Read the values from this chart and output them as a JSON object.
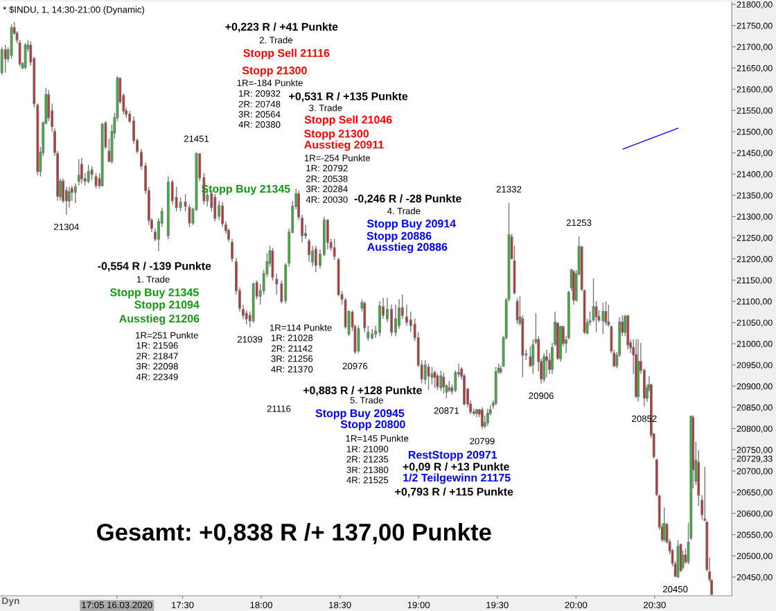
{
  "chart_data": {
    "type": "candlestick",
    "title": "* $INDU, 1, 14:30-21:00 (Dynamic)",
    "x": [
      16.352,
      16.374,
      16.391,
      16.413,
      16.431,
      16.448,
      16.466,
      16.483,
      16.501,
      16.518,
      16.535,
      16.557,
      16.579,
      16.597,
      16.614,
      16.632,
      16.649,
      16.671,
      16.688,
      16.706,
      16.723,
      16.741,
      16.762,
      16.78,
      16.797,
      16.819,
      16.841,
      16.859,
      16.88,
      16.902,
      16.924,
      16.95,
      16.972,
      16.99,
      17.011,
      17.033,
      17.051,
      17.068,
      17.086,
      17.103,
      17.125,
      17.142,
      17.164,
      17.19,
      17.212,
      17.238,
      17.265,
      17.286,
      17.304,
      17.326,
      17.348,
      17.369,
      17.409,
      17.435,
      17.461,
      17.487,
      17.518,
      17.544,
      17.566,
      17.588,
      17.609,
      17.636,
      17.658,
      17.684,
      17.706,
      17.732,
      17.754,
      17.775,
      17.793,
      17.815,
      17.841,
      17.863,
      17.885,
      17.906,
      17.928,
      17.95,
      17.972,
      17.994,
      18.016,
      18.037,
      18.055,
      18.072,
      18.098,
      18.129,
      18.155,
      18.177,
      18.199,
      18.221,
      18.238,
      18.26,
      18.282,
      18.304,
      18.326,
      18.347,
      18.374,
      18.4,
      18.422,
      18.443,
      18.465,
      18.491,
      18.513,
      18.535,
      18.557,
      18.579,
      18.596,
      18.618,
      18.64,
      18.657,
      18.679,
      18.705,
      18.727,
      18.753,
      18.775,
      18.801,
      18.828,
      18.854,
      18.876,
      18.897,
      18.924,
      18.95,
      18.976,
      18.998,
      19.02,
      19.042,
      19.063,
      19.085,
      19.103,
      19.12,
      19.142,
      19.159,
      19.177,
      19.194,
      19.212,
      19.234,
      19.255,
      19.273,
      19.29,
      19.312,
      19.33,
      19.351,
      19.369,
      19.386,
      19.404,
      19.421,
      19.439,
      19.456,
      19.474,
      19.491,
      19.509,
      19.522,
      19.539,
      19.557,
      19.574,
      19.592,
      19.609,
      19.627,
      19.644,
      19.661,
      19.683,
      19.71,
      19.727,
      19.745,
      19.762,
      19.779,
      19.797,
      19.814,
      19.832,
      19.849,
      19.867,
      19.884,
      19.902,
      19.919,
      19.937,
      19.954,
      19.971,
      19.985,
      20.002,
      20.019,
      20.037,
      20.054,
      20.072,
      20.089,
      20.111,
      20.129,
      20.146,
      20.172,
      20.19,
      20.207,
      20.225,
      20.242,
      20.26,
      20.277,
      20.295,
      20.312,
      20.33,
      20.347,
      20.365,
      20.382,
      20.395,
      20.412,
      20.434,
      20.452,
      20.465,
      20.478,
      20.495,
      20.513,
      20.53,
      20.548,
      20.561,
      20.578,
      20.596,
      20.613,
      20.631,
      20.648,
      20.666,
      20.679,
      20.696,
      20.714,
      20.731,
      20.744,
      20.762,
      20.779,
      20.801,
      20.819,
      20.832,
      20.849,
      20.862
    ],
    "ohlc": [
      [
        21639,
        21699,
        21634,
        21693
      ],
      [
        21693,
        21704,
        21639,
        21672
      ],
      [
        21672,
        21699,
        21664,
        21693
      ],
      [
        21680,
        21753,
        21672,
        21745
      ],
      [
        21745,
        21758,
        21729,
        21732
      ],
      [
        21732,
        21737,
        21709,
        21716
      ],
      [
        21709,
        21716,
        21654,
        21660
      ],
      [
        21650,
        21664,
        21647,
        21660
      ],
      [
        21652,
        21709,
        21647,
        21704
      ],
      [
        21696,
        21716,
        21688,
        21704
      ],
      [
        21704,
        21713,
        21655,
        21664
      ],
      [
        21672,
        21677,
        21557,
        21566
      ],
      [
        21562,
        21566,
        21397,
        21406
      ],
      [
        21406,
        21464,
        21394,
        21451
      ],
      [
        21451,
        21525,
        21443,
        21520
      ],
      [
        21520,
        21603,
        21517,
        21587
      ],
      [
        21587,
        21598,
        21525,
        21533
      ],
      [
        21549,
        21566,
        21500,
        21512
      ],
      [
        21500,
        21508,
        21443,
        21451
      ],
      [
        21448,
        21454,
        21337,
        21348
      ],
      [
        21347,
        21389,
        21337,
        21383
      ],
      [
        21383,
        21389,
        21332,
        21337
      ],
      [
        21361,
        21370,
        21304,
        21337
      ],
      [
        21337,
        21370,
        21321,
        21358
      ],
      [
        21366,
        21373,
        21337,
        21357
      ],
      [
        21357,
        21378,
        21332,
        21370
      ],
      [
        21383,
        21435,
        21373,
        21397
      ],
      [
        21423,
        21438,
        21378,
        21389
      ],
      [
        21389,
        21402,
        21373,
        21383
      ],
      [
        21383,
        21422,
        21378,
        21406
      ],
      [
        21410,
        21419,
        21386,
        21399
      ],
      [
        21394,
        21402,
        21366,
        21373
      ],
      [
        21389,
        21402,
        21366,
        21373
      ],
      [
        21373,
        21521,
        21370,
        21517
      ],
      [
        21520,
        21525,
        21459,
        21464
      ],
      [
        21454,
        21484,
        21427,
        21430
      ],
      [
        21430,
        21517,
        21425,
        21500
      ],
      [
        21497,
        21544,
        21484,
        21533
      ],
      [
        21533,
        21631,
        21525,
        21626
      ],
      [
        21626,
        21628,
        21566,
        21570
      ],
      [
        21585,
        21590,
        21541,
        21549
      ],
      [
        21549,
        21557,
        21533,
        21541
      ],
      [
        21541,
        21549,
        21520,
        21525
      ],
      [
        21525,
        21536,
        21471,
        21479
      ],
      [
        21479,
        21484,
        21448,
        21454
      ],
      [
        21451,
        21459,
        21410,
        21419
      ],
      [
        21419,
        21427,
        21353,
        21361
      ],
      [
        21361,
        21370,
        21280,
        21291
      ],
      [
        21291,
        21296,
        21263,
        21272
      ],
      [
        21263,
        21272,
        21242,
        21247
      ],
      [
        21247,
        21296,
        21218,
        21288
      ],
      [
        21285,
        21321,
        21275,
        21312
      ],
      [
        21255,
        21394,
        21247,
        21381
      ],
      [
        21381,
        21386,
        21329,
        21337
      ],
      [
        21345,
        21370,
        21312,
        21321
      ],
      [
        21321,
        21345,
        21312,
        21334
      ],
      [
        21334,
        21353,
        21312,
        21324
      ],
      [
        21321,
        21329,
        21275,
        21285
      ],
      [
        21285,
        21321,
        21280,
        21317
      ],
      [
        21317,
        21451,
        21312,
        21448
      ],
      [
        21448,
        21448,
        21383,
        21391
      ],
      [
        21391,
        21402,
        21329,
        21337
      ],
      [
        21337,
        21357,
        21324,
        21350
      ],
      [
        21353,
        21361,
        21312,
        21321
      ],
      [
        21345,
        21353,
        21288,
        21296
      ],
      [
        21301,
        21337,
        21291,
        21325
      ],
      [
        21325,
        21334,
        21275,
        21283
      ],
      [
        21280,
        21288,
        21259,
        21267
      ],
      [
        21267,
        21272,
        21239,
        21247
      ],
      [
        21239,
        21247,
        21193,
        21201
      ],
      [
        21193,
        21203,
        21116,
        21125
      ],
      [
        21125,
        21133,
        21076,
        21084
      ],
      [
        21081,
        21092,
        21059,
        21067
      ],
      [
        21072,
        21079,
        21046,
        21059
      ],
      [
        21067,
        21076,
        21039,
        21054
      ],
      [
        21054,
        21144,
        21049,
        21141
      ],
      [
        21144,
        21149,
        21105,
        21112
      ],
      [
        21112,
        21141,
        21092,
        21125
      ],
      [
        21125,
        21174,
        21116,
        21165
      ],
      [
        21165,
        21214,
        21157,
        21193
      ],
      [
        21190,
        21231,
        21182,
        21219
      ],
      [
        21219,
        21226,
        21149,
        21157
      ],
      [
        21152,
        21165,
        21116,
        21141
      ],
      [
        21141,
        21149,
        21095,
        21100
      ],
      [
        21102,
        21190,
        21095,
        21185
      ],
      [
        21190,
        21272,
        21182,
        21263
      ],
      [
        21263,
        21337,
        21259,
        21324
      ],
      [
        21324,
        21365,
        21317,
        21353
      ],
      [
        21353,
        21361,
        21291,
        21299
      ],
      [
        21296,
        21304,
        21239,
        21255
      ],
      [
        21260,
        21280,
        21247,
        21255
      ],
      [
        21242,
        21247,
        21193,
        21210
      ],
      [
        21193,
        21231,
        21182,
        21219
      ],
      [
        21223,
        21231,
        21169,
        21185
      ],
      [
        21185,
        21223,
        21177,
        21211
      ],
      [
        21211,
        21299,
        21206,
        21291
      ],
      [
        21291,
        21294,
        21223,
        21239
      ],
      [
        21239,
        21247,
        21219,
        21226
      ],
      [
        21226,
        21247,
        21198,
        21206
      ],
      [
        21198,
        21203,
        21112,
        21116
      ],
      [
        21116,
        21125,
        21092,
        21105
      ],
      [
        21103,
        21108,
        21035,
        21040
      ],
      [
        21023,
        21079,
        21018,
        21076
      ],
      [
        21074,
        21079,
        21030,
        21040
      ],
      [
        21040,
        21046,
        20976,
        20981
      ],
      [
        20983,
        21043,
        20978,
        21035
      ],
      [
        21084,
        21105,
        21076,
        21097
      ],
      [
        21095,
        21100,
        21027,
        21038
      ],
      [
        21014,
        21043,
        21007,
        21027
      ],
      [
        21014,
        21035,
        21010,
        21023
      ],
      [
        21023,
        21043,
        21014,
        21030
      ],
      [
        21027,
        21100,
        21018,
        21089
      ],
      [
        21087,
        21108,
        21059,
        21067
      ],
      [
        21059,
        21108,
        21051,
        21081
      ],
      [
        21081,
        21092,
        21018,
        21027
      ],
      [
        21027,
        21092,
        21018,
        21059
      ],
      [
        21043,
        21105,
        21035,
        21084
      ],
      [
        21085,
        21116,
        21059,
        21067
      ],
      [
        21063,
        21092,
        21043,
        21051
      ],
      [
        21056,
        21076,
        21027,
        21043
      ],
      [
        21046,
        21059,
        21007,
        21014
      ],
      [
        21014,
        21027,
        20945,
        20950
      ],
      [
        20950,
        20961,
        20907,
        20917
      ],
      [
        20916,
        20961,
        20904,
        20950
      ],
      [
        20945,
        20953,
        20891,
        20924
      ],
      [
        20921,
        20945,
        20904,
        20929
      ],
      [
        20932,
        20937,
        20896,
        20921
      ],
      [
        20924,
        20929,
        20891,
        20899
      ],
      [
        20896,
        20937,
        20888,
        20924
      ],
      [
        20921,
        20932,
        20883,
        20899
      ],
      [
        20886,
        20904,
        20871,
        20901
      ],
      [
        20891,
        20912,
        20886,
        20896
      ],
      [
        20896,
        20904,
        20880,
        20888
      ],
      [
        20891,
        20937,
        20886,
        20932
      ],
      [
        20932,
        20953,
        20921,
        20929
      ],
      [
        20940,
        20945,
        20916,
        20924
      ],
      [
        20924,
        20929,
        20854,
        20858
      ],
      [
        20893,
        20896,
        20850,
        20858
      ],
      [
        20858,
        20867,
        20834,
        20839
      ],
      [
        20839,
        20847,
        20831,
        20836
      ],
      [
        20836,
        20847,
        20827,
        20844
      ],
      [
        20844,
        20847,
        20827,
        20834
      ],
      [
        20844,
        20850,
        20799,
        20806
      ],
      [
        20806,
        20831,
        20801,
        20814
      ],
      [
        20814,
        20847,
        20806,
        20836
      ],
      [
        20836,
        20855,
        20831,
        20844
      ],
      [
        20855,
        20867,
        20847,
        20860
      ],
      [
        20860,
        20945,
        20855,
        20934
      ],
      [
        20934,
        20953,
        20929,
        20942
      ],
      [
        20940,
        20948,
        20929,
        20934
      ],
      [
        20948,
        21018,
        20945,
        21014
      ],
      [
        21015,
        21108,
        21010,
        21103
      ],
      [
        21105,
        21332,
        21100,
        21257
      ],
      [
        21252,
        21259,
        21198,
        21201
      ],
      [
        21195,
        21231,
        21116,
        21120
      ],
      [
        21100,
        21108,
        21046,
        21056
      ],
      [
        21049,
        21112,
        21043,
        21063
      ],
      [
        21059,
        21067,
        20921,
        20973
      ],
      [
        20976,
        20986,
        20961,
        20974
      ],
      [
        20969,
        20994,
        20945,
        20948
      ],
      [
        20950,
        21010,
        20929,
        20997
      ],
      [
        21004,
        21072,
        20999,
        21010
      ],
      [
        21010,
        21018,
        20935,
        20958
      ],
      [
        20958,
        20965,
        20906,
        20917
      ],
      [
        20917,
        20978,
        20909,
        20969
      ],
      [
        20969,
        20986,
        20921,
        20961
      ],
      [
        20961,
        20978,
        20929,
        20940
      ],
      [
        20940,
        21002,
        20929,
        20991
      ],
      [
        20999,
        21076,
        20994,
        21051
      ],
      [
        21048,
        21051,
        20961,
        20966
      ],
      [
        20965,
        21043,
        20958,
        21040
      ],
      [
        21040,
        21043,
        20994,
        21001
      ],
      [
        21001,
        21018,
        20978,
        21009
      ],
      [
        21015,
        21125,
        21010,
        21121
      ],
      [
        21133,
        21177,
        21125,
        21174
      ],
      [
        21170,
        21174,
        21092,
        21103
      ],
      [
        21103,
        21174,
        21099,
        21165
      ],
      [
        21165,
        21253,
        21161,
        21229
      ],
      [
        21228,
        21231,
        21125,
        21128
      ],
      [
        21125,
        21128,
        21023,
        21027
      ],
      [
        21025,
        21059,
        21022,
        21049
      ],
      [
        21051,
        21076,
        21043,
        21054
      ],
      [
        21056,
        21154,
        21051,
        21087
      ],
      [
        21087,
        21100,
        21027,
        21064
      ],
      [
        21064,
        21079,
        21051,
        21056
      ],
      [
        21054,
        21097,
        21023,
        21076
      ],
      [
        21076,
        21100,
        21043,
        21051
      ],
      [
        21051,
        21092,
        21040,
        21045
      ],
      [
        21040,
        21043,
        20978,
        20983
      ],
      [
        20978,
        20986,
        20945,
        20948
      ],
      [
        20948,
        20981,
        20942,
        20973
      ],
      [
        20974,
        21063,
        20969,
        21051
      ],
      [
        21051,
        21067,
        21018,
        21027
      ],
      [
        21027,
        21069,
        21018,
        21064
      ],
      [
        21066,
        21067,
        20986,
        20997
      ],
      [
        21002,
        21010,
        20978,
        20991
      ],
      [
        20991,
        21010,
        20929,
        20974
      ],
      [
        20974,
        21010,
        20872,
        20876
      ],
      [
        20876,
        21010,
        20863,
        20958
      ],
      [
        20958,
        21002,
        20929,
        20937
      ],
      [
        20937,
        20942,
        20852,
        20872
      ],
      [
        20872,
        20904,
        20863,
        20896
      ],
      [
        20896,
        20924,
        20888,
        20903
      ],
      [
        20903,
        20906,
        20778,
        20785
      ],
      [
        20787,
        20790,
        20729,
        20734
      ],
      [
        20726,
        20729,
        20641,
        20645
      ],
      [
        20641,
        20645,
        20561,
        20568
      ],
      [
        20568,
        20576,
        20533,
        20538
      ],
      [
        20538,
        20614,
        20533,
        20576
      ],
      [
        20574,
        20578,
        20529,
        20533
      ],
      [
        20533,
        20540,
        20504,
        20512
      ],
      [
        20512,
        20517,
        20475,
        20483
      ],
      [
        20481,
        20488,
        20450,
        20452
      ],
      [
        20450,
        20537,
        20450,
        20522
      ],
      [
        20527,
        20529,
        20462,
        20465
      ],
      [
        20473,
        20512,
        20468,
        20501
      ],
      [
        20502,
        20517,
        20481,
        20486
      ],
      [
        20486,
        20578,
        20480,
        20532
      ],
      [
        20542,
        20831,
        20537,
        20829
      ],
      [
        20826,
        20831,
        20659,
        20703
      ],
      [
        20676,
        20769,
        20667,
        20725
      ],
      [
        20720,
        20749,
        20618,
        20643
      ],
      [
        20631,
        20643,
        20586,
        20597
      ],
      [
        20587,
        20710,
        20582,
        20584
      ],
      [
        20579,
        20582,
        20463,
        20468
      ],
      [
        20462,
        20496,
        20439,
        20445
      ],
      [
        20442,
        20445,
        20408,
        20409
      ]
    ],
    "series": [
      {
        "type": "line",
        "x": [
          20.299,
          20.648
        ],
        "values": [
          21459,
          21508
        ],
        "color": "#0000ff"
      }
    ],
    "xlim": [
      16.34,
      20.99
    ],
    "ylim": [
      20406,
      21806
    ],
    "xticks": [
      {
        "value": 17.083,
        "label": "17:05 16.03.2020"
      },
      {
        "value": 17.5,
        "label": "17:30"
      },
      {
        "value": 18,
        "label": "18:00"
      },
      {
        "value": 18.5,
        "label": "18:30"
      },
      {
        "value": 19,
        "label": "19:00"
      },
      {
        "value": 19.5,
        "label": "19:30"
      },
      {
        "value": 20,
        "label": "20:00"
      },
      {
        "value": 20.5,
        "label": "20:30"
      }
    ],
    "yticks": [
      {
        "value": 20450,
        "label": "20450,00"
      },
      {
        "value": 20500,
        "label": "20500,00"
      },
      {
        "value": 20550,
        "label": "20550,00"
      },
      {
        "value": 20600,
        "label": "20600,00"
      },
      {
        "value": 20650,
        "label": "20650,00"
      },
      {
        "value": 20700,
        "label": "20700,00"
      },
      {
        "value": 20729.33,
        "label": "20729,33"
      },
      {
        "value": 20750,
        "label": "20750,00"
      },
      {
        "value": 20800,
        "label": "20800,00"
      },
      {
        "value": 20850,
        "label": "20850,00"
      },
      {
        "value": 20900,
        "label": "20900,00"
      },
      {
        "value": 20950,
        "label": "20950,00"
      },
      {
        "value": 21000,
        "label": "21000,00"
      },
      {
        "value": 21050,
        "label": "21050,00"
      },
      {
        "value": 21100,
        "label": "21100,00"
      },
      {
        "value": 21150,
        "label": "21150,00"
      },
      {
        "value": 21200,
        "label": "21200,00"
      },
      {
        "value": 21250,
        "label": "21250,00"
      },
      {
        "value": 21300,
        "label": "21300,00"
      },
      {
        "value": 21350,
        "label": "21350,00"
      },
      {
        "value": 21400,
        "label": "21400,00"
      },
      {
        "value": 21450,
        "label": "21450,00"
      },
      {
        "value": 21500,
        "label": "21500,00"
      },
      {
        "value": 21550,
        "label": "21550,00"
      },
      {
        "value": 21600,
        "label": "21600,00"
      },
      {
        "value": 21650,
        "label": "21650,00"
      },
      {
        "value": 21700,
        "label": "21700,00"
      },
      {
        "value": 21750,
        "label": "21750,00"
      },
      {
        "value": 21800,
        "label": "21800,00"
      }
    ],
    "grid": false,
    "legend": false,
    "annotations": [
      {
        "text": "21304",
        "x": 16.762,
        "y": 21304
      },
      {
        "text": "21451",
        "x": 17.588,
        "y": 21451
      },
      {
        "text": "21039",
        "x": 17.928,
        "y": 21039
      },
      {
        "text": "20976",
        "x": 18.596,
        "y": 20976
      },
      {
        "text": "20871",
        "x": 19.177,
        "y": 20871
      },
      {
        "text": "20799",
        "x": 19.404,
        "y": 20799
      },
      {
        "text": "21332",
        "x": 19.574,
        "y": 21332
      },
      {
        "text": "20906",
        "x": 19.779,
        "y": 20906
      },
      {
        "text": "21253",
        "x": 20.019,
        "y": 21253
      },
      {
        "text": "20852",
        "x": 20.434,
        "y": 20852
      },
      {
        "text": "20450",
        "x": 20.631,
        "y": 20450
      },
      "Dyn",
      "21116",
      "+0,223 R / +41 Punkte",
      "2. Trade",
      "Stopp Sell 21116",
      "Stopp 21300",
      "1R=-184 Punkte",
      "1R: 20932",
      "2R: 20748",
      "3R: 20564",
      "4R: 20380",
      "+0,531 R / +135 Punkte",
      "3. Trade",
      "Stopp Sell 21046",
      "Stopp 21300",
      "Ausstieg 20911",
      "1R=-254 Punkte",
      "1R: 20792",
      "2R: 20538",
      "3R: 20284",
      "4R: 20030",
      "Stopp Buy 21345",
      "-0,554 R / -139 Punkte",
      "1. Trade",
      "Stopp Buy 21345",
      "Stopp 21094",
      "Ausstieg 21206",
      "1R=251 Punkte",
      "1R: 21596",
      "2R: 21847",
      "3R: 22098",
      "4R: 22349",
      "1R=114 Punkte",
      "1R: 21028",
      "2R: 21142",
      "3R: 21256",
      "4R: 21370",
      "-0,246 R / -28 Punkte",
      "4. Trade",
      "Stopp Buy 20914",
      "Stopp 20886",
      "Ausstieg 20886",
      "+0,883 R / +128 Punkte",
      "5. Trade",
      "Stopp Buy 20945",
      "Stopp 20800",
      "1R=145 Punkte",
      "1R: 21090",
      "2R: 21235",
      "3R: 21380",
      "4R: 21525",
      "RestStopp 20971",
      "+0,09 R / +13 Punkte",
      "1/2 Teilgewinn 21175",
      "+0,793 R / +115 Punkte",
      "Gesamt: +0,838 R /+ 137,00 Punkte"
    ]
  }
}
